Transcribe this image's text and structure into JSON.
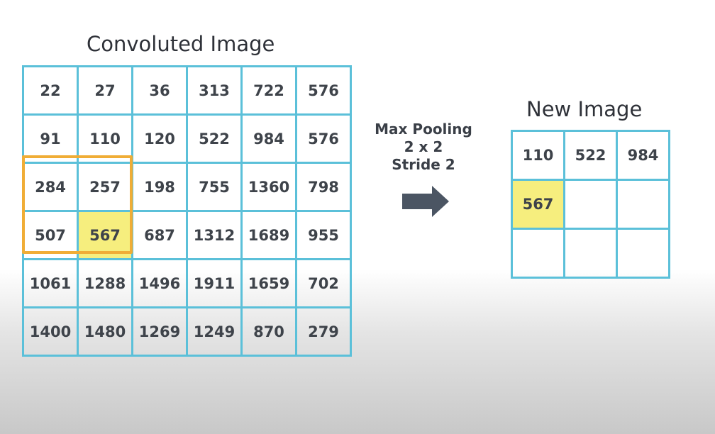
{
  "convoluted_image": {
    "title": "Convoluted Image",
    "rows": [
      [
        "22",
        "27",
        "36",
        "313",
        "722",
        "576"
      ],
      [
        "91",
        "110",
        "120",
        "522",
        "984",
        "576"
      ],
      [
        "284",
        "257",
        "198",
        "755",
        "1360",
        "798"
      ],
      [
        "507",
        "567",
        "687",
        "1312",
        "1689",
        "955"
      ],
      [
        "1061",
        "1288",
        "1496",
        "1911",
        "1659",
        "702"
      ],
      [
        "1400",
        "1480",
        "1269",
        "1249",
        "870",
        "279"
      ]
    ],
    "highlight_color": "#f6ee7e",
    "window_color": "#f0ad36"
  },
  "operation": {
    "name": "Max Pooling",
    "size": "2 x 2",
    "stride": "Stride 2",
    "arrow_color": "#4b5563"
  },
  "new_image": {
    "title": "New Image",
    "rows": [
      [
        "110",
        "522",
        "984"
      ],
      [
        "567",
        "",
        ""
      ],
      [
        "",
        "",
        ""
      ]
    ]
  },
  "colors": {
    "grid_line": "#5bc0d9"
  }
}
